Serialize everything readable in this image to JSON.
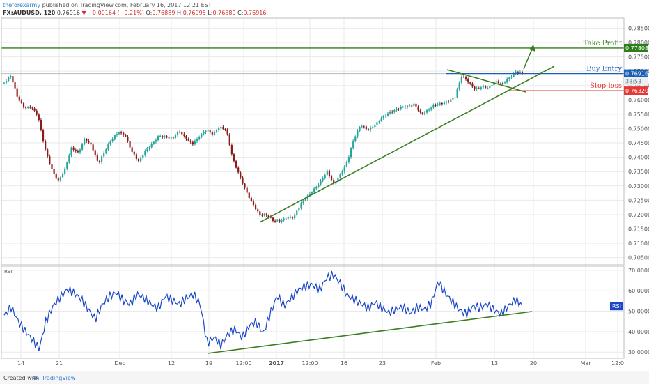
{
  "header": {
    "publisher": "theforexarmy",
    "published_text": " published on TradingView.com, February 16, 2017 12:21 EST",
    "symbol": "FX:AUDUSD, 120",
    "last": "0.76916",
    "change": "▼ −0.00164 (−0.21%)",
    "o_label": "O:",
    "o_val": "0.76889",
    "h_label": "H:",
    "h_val": "0.76995",
    "l_label": "L:",
    "l_val": "0.76889",
    "c_label": "C:",
    "c_val": "0.76916"
  },
  "footer": {
    "created": "Created with",
    "brand": "TradingView",
    "logo_icon": "tradingview-cloud-icon"
  },
  "chart_data": {
    "type": "candlestick",
    "price_axis": {
      "ylim": [
        0.7025,
        0.7885
      ],
      "ticks": [
        "0.78500",
        "0.78000",
        "0.77500",
        "0.77000",
        "0.76500",
        "0.76000",
        "0.75500",
        "0.75000",
        "0.74500",
        "0.74000",
        "0.73500",
        "0.73000",
        "0.72500",
        "0.72000",
        "0.71500",
        "0.71000",
        "0.70500"
      ]
    },
    "rsi_axis": {
      "label": "RSI",
      "ylim": [
        27,
        72
      ],
      "ticks": [
        "70.0000",
        "60.0000",
        "50.0000",
        "40.0000",
        "30.0000"
      ]
    },
    "x_ticks": [
      "14",
      "21",
      "Dec",
      "12",
      "19",
      "12:00",
      "2017",
      "12:00",
      "16",
      "23",
      "Feb",
      "13",
      "20",
      "Mar",
      "12:0"
    ],
    "price_anchors": [
      0.766,
      0.768,
      0.7605,
      0.7575,
      0.758,
      0.7545,
      0.743,
      0.736,
      0.732,
      0.736,
      0.743,
      0.741,
      0.7465,
      0.7445,
      0.738,
      0.742,
      0.746,
      0.749,
      0.748,
      0.742,
      0.738,
      0.742,
      0.745,
      0.748,
      0.747,
      0.746,
      0.749,
      0.747,
      0.745,
      0.747,
      0.749,
      0.748,
      0.751,
      0.75,
      0.739,
      0.733,
      0.728,
      0.724,
      0.72,
      0.7195,
      0.7175,
      0.718,
      0.7195,
      0.719,
      0.723,
      0.726,
      0.729,
      0.732,
      0.735,
      0.73,
      0.734,
      0.739,
      0.747,
      0.751,
      0.749,
      0.751,
      0.754,
      0.7555,
      0.756,
      0.757,
      0.758,
      0.759,
      0.755,
      0.756,
      0.758,
      0.759,
      0.76,
      0.761,
      0.768,
      0.766,
      0.764,
      0.765,
      0.764,
      0.766,
      0.7655,
      0.768,
      0.77,
      0.769
    ],
    "rsi_anchors": [
      48,
      52,
      45,
      40,
      36,
      31,
      45,
      52,
      56,
      60,
      58,
      55,
      50,
      45,
      52,
      56,
      58,
      54,
      52,
      57,
      55,
      52,
      50,
      56,
      54,
      52,
      55,
      57,
      52,
      33,
      36,
      32,
      38,
      40,
      36,
      42,
      44,
      38,
      48,
      57,
      52,
      56,
      60,
      62,
      63,
      60,
      66,
      68,
      64,
      58,
      56,
      54,
      52,
      55,
      52,
      50,
      52,
      53,
      50,
      53,
      52,
      55,
      66,
      60,
      56,
      52,
      50,
      54,
      53,
      55,
      52,
      50,
      54,
      57,
      54
    ],
    "levels": [
      {
        "name": "Take Profit",
        "price": 0.77808,
        "label": "0.77808",
        "color": "#2e7d1b"
      },
      {
        "name": "Buy Entry",
        "price": 0.76916,
        "label": "0.76916",
        "color": "#1a5fb4"
      },
      {
        "name": "Stop loss",
        "price": 0.7632,
        "label": "0.76320",
        "color": "#e53935"
      }
    ],
    "price_tags": [
      {
        "label": "38:53",
        "color": "#607d8b"
      }
    ],
    "rsi_tag": {
      "label": "RSI",
      "color": "#1a47c8"
    },
    "colors": {
      "up": "#26a69a",
      "down": "#8b1a1a",
      "rsi": "#1a47c8",
      "trend": "#3a7d1f",
      "grid": "#eaeaea",
      "axis_text": "#555555"
    }
  }
}
